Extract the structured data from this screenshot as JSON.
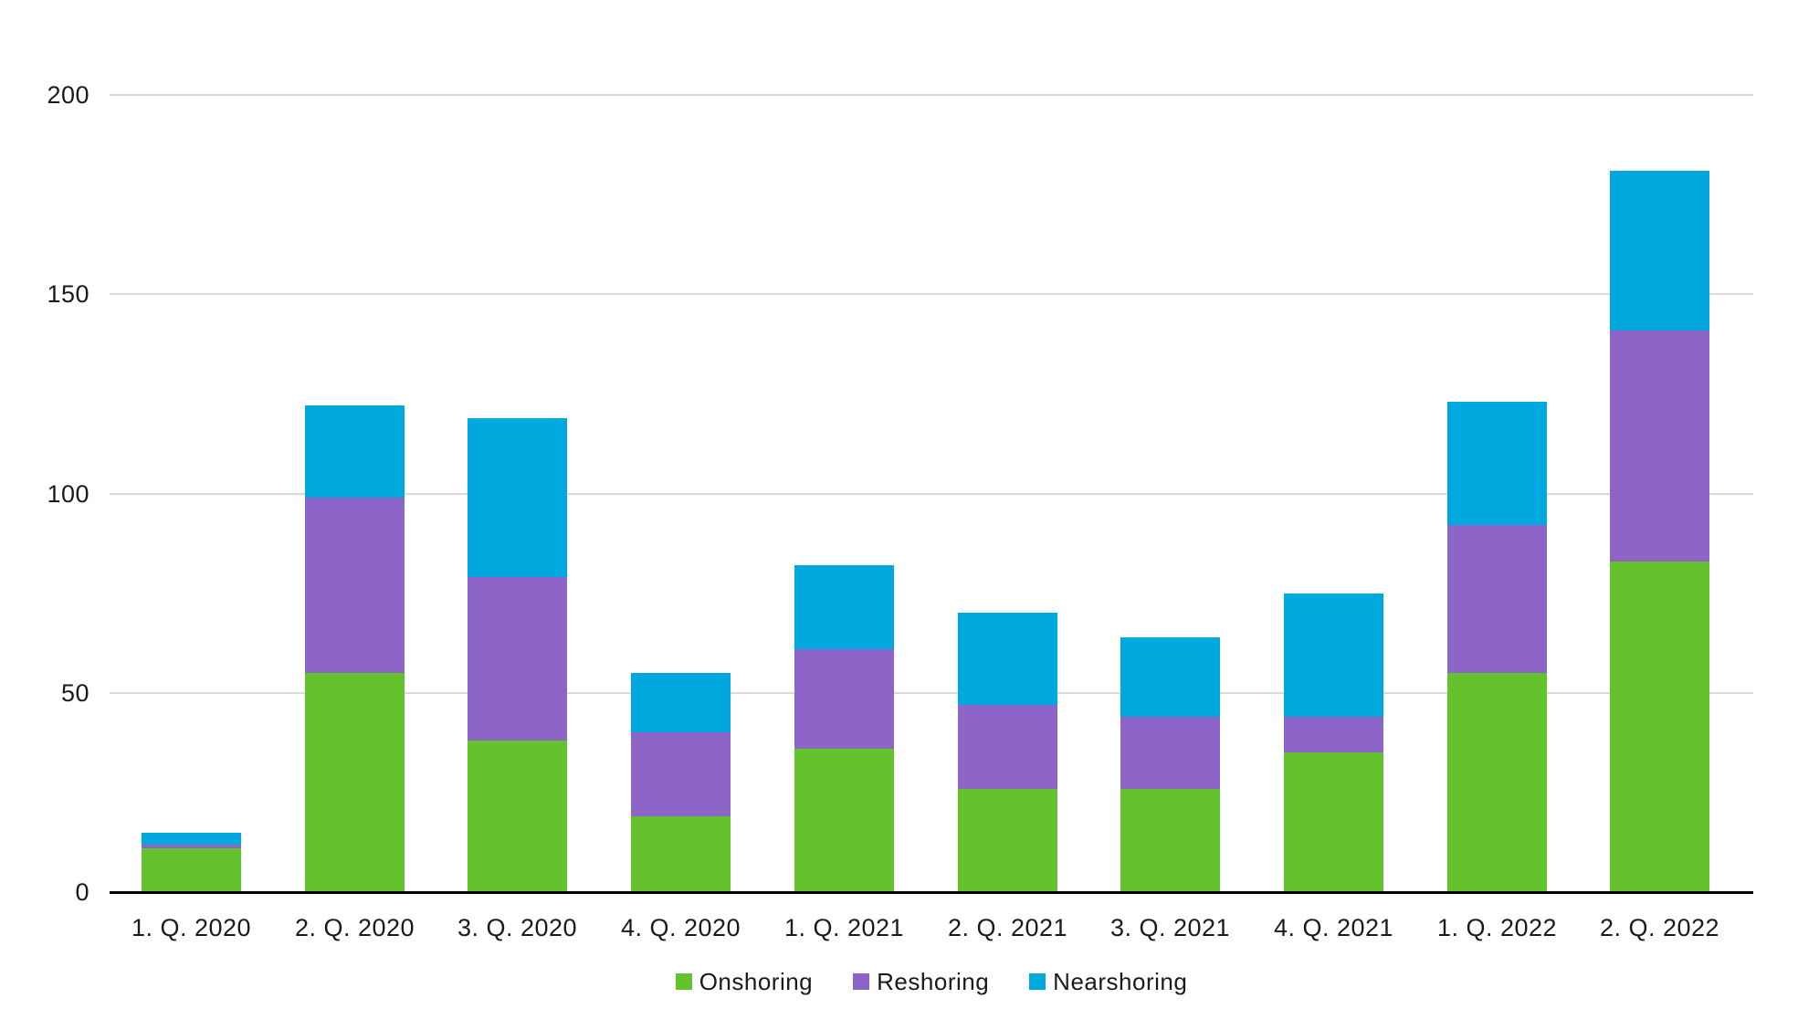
{
  "chart_data": {
    "type": "bar",
    "stacked": true,
    "title": "",
    "xlabel": "",
    "ylabel": "",
    "categories": [
      "1. Q. 2020",
      "2. Q. 2020",
      "3. Q. 2020",
      "4. Q. 2020",
      "1. Q. 2021",
      "2. Q. 2021",
      "3. Q. 2021",
      "4. Q. 2021",
      "1. Q. 2022",
      "2. Q. 2022"
    ],
    "series": [
      {
        "name": "Onshoring",
        "color": "#64C22D",
        "values": [
          11,
          55,
          38,
          19,
          36,
          26,
          26,
          35,
          55,
          83
        ]
      },
      {
        "name": "Reshoring",
        "color": "#8D64C8",
        "values": [
          1,
          44,
          41,
          21,
          25,
          21,
          18,
          9,
          37,
          58
        ]
      },
      {
        "name": "Nearshoring",
        "color": "#00A8E0",
        "values": [
          3,
          23,
          40,
          15,
          21,
          23,
          20,
          31,
          31,
          40
        ]
      }
    ],
    "stack_totals": [
      15,
      122,
      119,
      55,
      82,
      70,
      64,
      75,
      123,
      181
    ],
    "ylim": [
      0,
      200
    ],
    "yticks": [
      0,
      50,
      100,
      150,
      200
    ],
    "grid": "horizontal",
    "gridline_color": "#D9D9D9",
    "axis_color": "#000000",
    "text_color": "#1A1A1A",
    "background_color": "#FFFFFF",
    "legend_position": "bottom",
    "legend": [
      "Onshoring",
      "Reshoring",
      "Nearshoring"
    ]
  }
}
